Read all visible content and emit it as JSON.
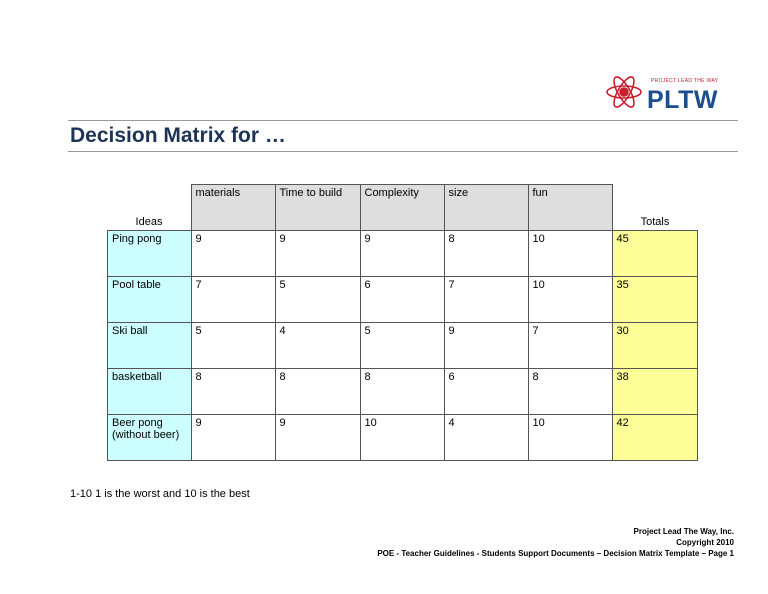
{
  "logo": {
    "tagline": "PROJECT LEAD THE WAY",
    "wordmark": "PLTW"
  },
  "title": "Decision Matrix for …",
  "matrix": {
    "ideas_label": "Ideas",
    "totals_label": "Totals",
    "criteria": [
      "materials",
      "Time to build",
      "Complexity",
      "size",
      "fun"
    ],
    "rows": [
      {
        "idea": "Ping pong",
        "scores": [
          "9",
          "9",
          "9",
          "8",
          "10"
        ],
        "total": "45"
      },
      {
        "idea": "Pool table",
        "scores": [
          "7",
          "5",
          "6",
          "7",
          "10"
        ],
        "total": "35"
      },
      {
        "idea": "Ski ball",
        "scores": [
          "5",
          "4",
          "5",
          "9",
          "7"
        ],
        "total": "30"
      },
      {
        "idea": "basketball",
        "scores": [
          "8",
          "8",
          "8",
          "6",
          "8"
        ],
        "total": "38"
      },
      {
        "idea": "Beer pong (without beer)",
        "scores": [
          "9",
          "9",
          "10",
          "4",
          "10"
        ],
        "total": "42"
      }
    ]
  },
  "note": "1-10 1 is the worst and 10 is the best",
  "footer": {
    "org": "Project Lead The Way, Inc.",
    "copyright": "Copyright 2010",
    "document": "POE - Teacher Guidelines - Students Support Documents – Decision Matrix Template – Page 1"
  },
  "colors": {
    "title": "#1c3556",
    "idea_fill": "#ccfdff",
    "total_fill": "#ffff99",
    "header_fill": "#dedede",
    "logo_blue": "#1b4e8c",
    "logo_red": "#c8202f"
  }
}
